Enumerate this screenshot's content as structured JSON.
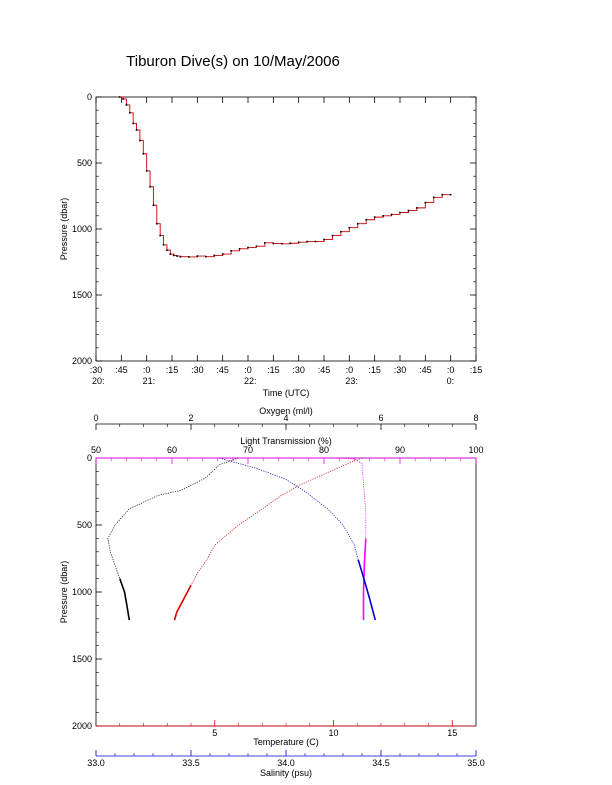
{
  "title": "Tiburon Dive(s) on 10/May/2006",
  "colors": {
    "axis": "#000000",
    "depth_trace": "#cc0000",
    "oxygen": "#000000",
    "light": "#ff00ff",
    "temperature": "#dd0000",
    "salinity": "#0000cc"
  },
  "chart_data": [
    {
      "type": "line",
      "title": "Tiburon Dive(s) on 10/May/2006",
      "xlabel": "Time (UTC)",
      "ylabel": "Pressure (dbar)",
      "x_unit": "minutes after 20:30 UTC",
      "xlim": [
        0,
        225
      ],
      "ylim": [
        2000,
        0
      ],
      "y_ticks": [
        "0",
        "500",
        "1000",
        "1500",
        "2000"
      ],
      "x_ticks": [
        {
          "top": ":30",
          "bottom": "20:"
        },
        {
          "top": ":45",
          "bottom": ""
        },
        {
          "top": ":0",
          "bottom": "21:"
        },
        {
          "top": ":15",
          "bottom": ""
        },
        {
          "top": ":30",
          "bottom": ""
        },
        {
          "top": ":45",
          "bottom": ""
        },
        {
          "top": ":0",
          "bottom": "22:"
        },
        {
          "top": ":15",
          "bottom": ""
        },
        {
          "top": ":30",
          "bottom": ""
        },
        {
          "top": ":45",
          "bottom": ""
        },
        {
          "top": ":0",
          "bottom": "23:"
        },
        {
          "top": ":15",
          "bottom": ""
        },
        {
          "top": ":30",
          "bottom": ""
        },
        {
          "top": ":45",
          "bottom": ""
        },
        {
          "top": ":0",
          "bottom": "0:"
        },
        {
          "top": ":15",
          "bottom": ""
        }
      ],
      "series": [
        {
          "x": [
            14,
            16,
            18,
            20,
            22,
            24,
            26,
            28,
            30,
            32,
            34,
            36,
            38,
            40,
            42,
            44,
            46,
            48,
            50,
            55,
            60,
            65,
            70,
            75,
            80,
            85,
            90,
            95,
            100,
            105,
            110,
            115,
            120,
            125,
            130,
            135,
            140,
            145,
            150,
            155,
            160,
            165,
            170,
            175,
            180,
            185,
            190,
            195,
            200,
            205,
            210
          ],
          "y": [
            0,
            15,
            60,
            120,
            200,
            250,
            330,
            430,
            560,
            680,
            820,
            960,
            1050,
            1120,
            1160,
            1190,
            1200,
            1205,
            1210,
            1212,
            1205,
            1210,
            1200,
            1190,
            1165,
            1150,
            1140,
            1130,
            1105,
            1110,
            1112,
            1108,
            1100,
            1095,
            1095,
            1080,
            1050,
            1020,
            990,
            960,
            930,
            910,
            900,
            890,
            875,
            860,
            840,
            800,
            760,
            740,
            740
          ]
        }
      ]
    },
    {
      "type": "line",
      "ylabel": "Pressure (dbar)",
      "ylim": [
        2000,
        0
      ],
      "y_ticks": [
        "0",
        "500",
        "1000",
        "1500",
        "2000"
      ],
      "axes": [
        {
          "label": "Oxygen (ml/l)",
          "range": [
            0,
            8
          ],
          "ticks": [
            "0",
            "2",
            "4",
            "6",
            "8"
          ],
          "color": "#000000"
        },
        {
          "label": "Light Transmission (%)",
          "range": [
            50,
            100
          ],
          "ticks": [
            "50",
            "60",
            "70",
            "80",
            "90",
            "100"
          ],
          "color": "#ff00ff"
        },
        {
          "label": "Temperature (C)",
          "range": [
            0,
            16
          ],
          "ticks": [
            "5",
            "10",
            "15"
          ],
          "color": "#dd0000"
        },
        {
          "label": "Salinity (psu)",
          "range": [
            33.0,
            35.0
          ],
          "ticks": [
            "33.0",
            "33.5",
            "34.0",
            "34.5",
            "35.0"
          ],
          "color": "#0000cc"
        }
      ],
      "series": [
        {
          "axis": "Oxygen (ml/l)",
          "values": [
            [
              3.0,
              0
            ],
            [
              2.6,
              50
            ],
            [
              2.3,
              150
            ],
            [
              1.8,
              240
            ],
            [
              1.3,
              280
            ],
            [
              0.7,
              380
            ],
            [
              0.4,
              500
            ],
            [
              0.25,
              600
            ],
            [
              0.3,
              700
            ],
            [
              0.4,
              800
            ],
            [
              0.5,
              900
            ],
            [
              0.6,
              1000
            ],
            [
              0.65,
              1100
            ],
            [
              0.7,
              1210
            ]
          ]
        },
        {
          "axis": "Light Transmission (%)",
          "values": [
            [
              50,
              0
            ],
            [
              80,
              0
            ],
            [
              84,
              5
            ],
            [
              85,
              40
            ],
            [
              85.2,
              200
            ],
            [
              85.5,
              400
            ],
            [
              85.5,
              600
            ],
            [
              85.3,
              800
            ],
            [
              85.2,
              1000
            ],
            [
              85.2,
              1210
            ]
          ]
        },
        {
          "axis": "Temperature (C)",
          "values": [
            [
              11.2,
              0
            ],
            [
              10.5,
              50
            ],
            [
              9.6,
              120
            ],
            [
              8.6,
              200
            ],
            [
              7.8,
              280
            ],
            [
              7.0,
              380
            ],
            [
              6.0,
              500
            ],
            [
              5.0,
              650
            ],
            [
              4.7,
              750
            ],
            [
              4.3,
              850
            ],
            [
              4.0,
              950
            ],
            [
              3.7,
              1050
            ],
            [
              3.4,
              1150
            ],
            [
              3.3,
              1210
            ]
          ]
        },
        {
          "axis": "Salinity (psu)",
          "values": [
            [
              33.65,
              0
            ],
            [
              33.7,
              20
            ],
            [
              33.85,
              80
            ],
            [
              34.0,
              160
            ],
            [
              34.1,
              250
            ],
            [
              34.22,
              380
            ],
            [
              34.3,
              500
            ],
            [
              34.36,
              650
            ],
            [
              34.38,
              760
            ],
            [
              34.41,
              900
            ],
            [
              34.44,
              1050
            ],
            [
              34.47,
              1210
            ]
          ]
        }
      ]
    }
  ]
}
